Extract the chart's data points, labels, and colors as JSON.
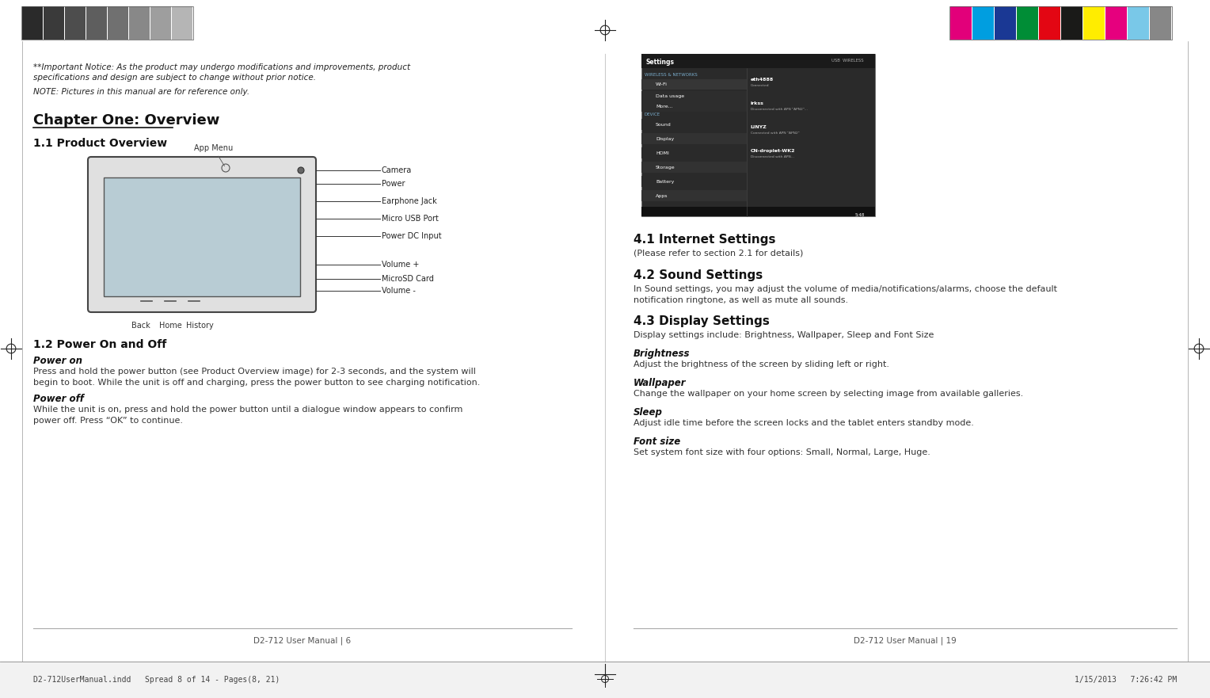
{
  "bg_color": "#ffffff",
  "color_swatches_left": [
    "#2a2a2a",
    "#3a3a3a",
    "#4d4d4d",
    "#5e5e5e",
    "#707070",
    "#888888",
    "#9e9e9e",
    "#b5b5b5"
  ],
  "color_swatches_right": [
    "#e2007a",
    "#009ee0",
    "#1a3894",
    "#008d36",
    "#e30613",
    "#1a1a18",
    "#ffed00",
    "#e6007e",
    "#79c8e8",
    "#878787"
  ],
  "left_page": {
    "important_notice_line1": "**Important Notice: As the product may undergo modifications and improvements, product",
    "important_notice_line2": "specifications and design are subject to change without prior notice.",
    "note": "NOTE: Pictures in this manual are for reference only.",
    "chapter_title": "Chapter One: Overview",
    "section_11": "1.1 Product Overview",
    "section_12": "1.2 Power On and Off",
    "power_on_label": "Power on",
    "power_on_text": "Press and hold the power button (see Product Overview image) for 2-3 seconds, and the system will\nbegin to boot. While the unit is off and charging, press the power button to see charging notification.",
    "power_off_label": "Power off",
    "power_off_text": "While the unit is on, press and hold the power button until a dialogue window appears to confirm\npower off. Press “OK” to continue.",
    "footer": "D2-712 User Manual | 6"
  },
  "right_page": {
    "section_41": "4.1 Internet Settings",
    "section_41_sub": "(Please refer to section 2.1 for details)",
    "section_42": "4.2 Sound Settings",
    "section_42_text": "In Sound settings, you may adjust the volume of media/notifications/alarms, choose the default\nnotification ringtone, as well as mute all sounds.",
    "section_43": "4.3 Display Settings",
    "section_43_text": "Display settings include: Brightness, Wallpaper, Sleep and Font Size",
    "brightness_label": "Brightness",
    "brightness_text": "Adjust the brightness of the screen by sliding left or right.",
    "wallpaper_label": "Wallpaper",
    "wallpaper_text": "Change the wallpaper on your home screen by selecting image from available galleries.",
    "sleep_label": "Sleep",
    "sleep_text": "Adjust idle time before the screen locks and the tablet enters standby mode.",
    "fontsize_label": "Font size",
    "fontsize_text": "Set system font size with four options: Small, Normal, Large, Huge.",
    "footer": "D2-712 User Manual | 19"
  },
  "bottom_bar": {
    "left_text": "D2-712UserManual.indd   Spread 8 of 14 - Pages(8, 21)",
    "center_left_text": "D2-712UserManual.indd   Spread 8 of 14 - Pages(8, 21)",
    "right_text": "1/15/2013   7:26:42 PM"
  },
  "tablet_labels": {
    "app_menu": "App Menu",
    "camera": "Camera",
    "power": "Power",
    "earphone": "Earphone Jack",
    "micro_usb": "Micro USB Port",
    "power_dc": "Power DC Input",
    "volume_plus": "Volume +",
    "microsd": "MicroSD Card",
    "volume_minus": "Volume -",
    "back": "Back",
    "home": "Home",
    "history": "History"
  },
  "settings_menu_items": [
    {
      "label": "Wi-Fi",
      "color": "#363636"
    },
    {
      "label": "Data usage",
      "color": "#2d2d2d"
    },
    {
      "label": "More...",
      "color": "#2d2d2d"
    }
  ],
  "settings_device_items": [
    "Sound",
    "Display",
    "HDMI",
    "Storage",
    "Battery",
    "Apps"
  ]
}
